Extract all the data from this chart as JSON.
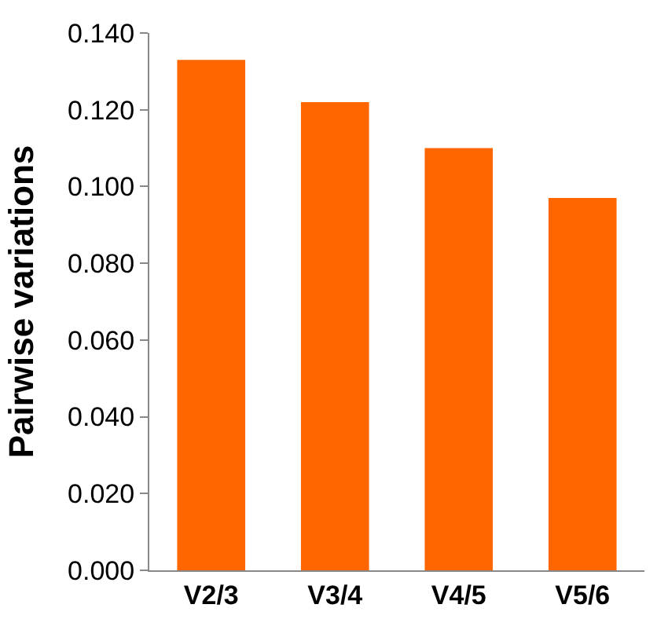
{
  "chart_data": {
    "type": "bar",
    "ylabel": "Pairwise variations",
    "categories": [
      "V2/3",
      "V3/4",
      "V4/5",
      "V5/6"
    ],
    "values": [
      0.133,
      0.122,
      0.11,
      0.097
    ],
    "color": "#ff6600",
    "ylim": [
      0,
      0.14
    ],
    "yticks": [
      {
        "value": 0,
        "label": "0.000"
      },
      {
        "value": 0.02,
        "label": "0.020"
      },
      {
        "value": 0.04,
        "label": "0.040"
      },
      {
        "value": 0.06,
        "label": "0.060"
      },
      {
        "value": 0.08,
        "label": "0.080"
      },
      {
        "value": 0.1,
        "label": "0.100"
      },
      {
        "value": 0.12,
        "label": "0.120"
      },
      {
        "value": 0.14,
        "label": "0.140"
      }
    ]
  }
}
